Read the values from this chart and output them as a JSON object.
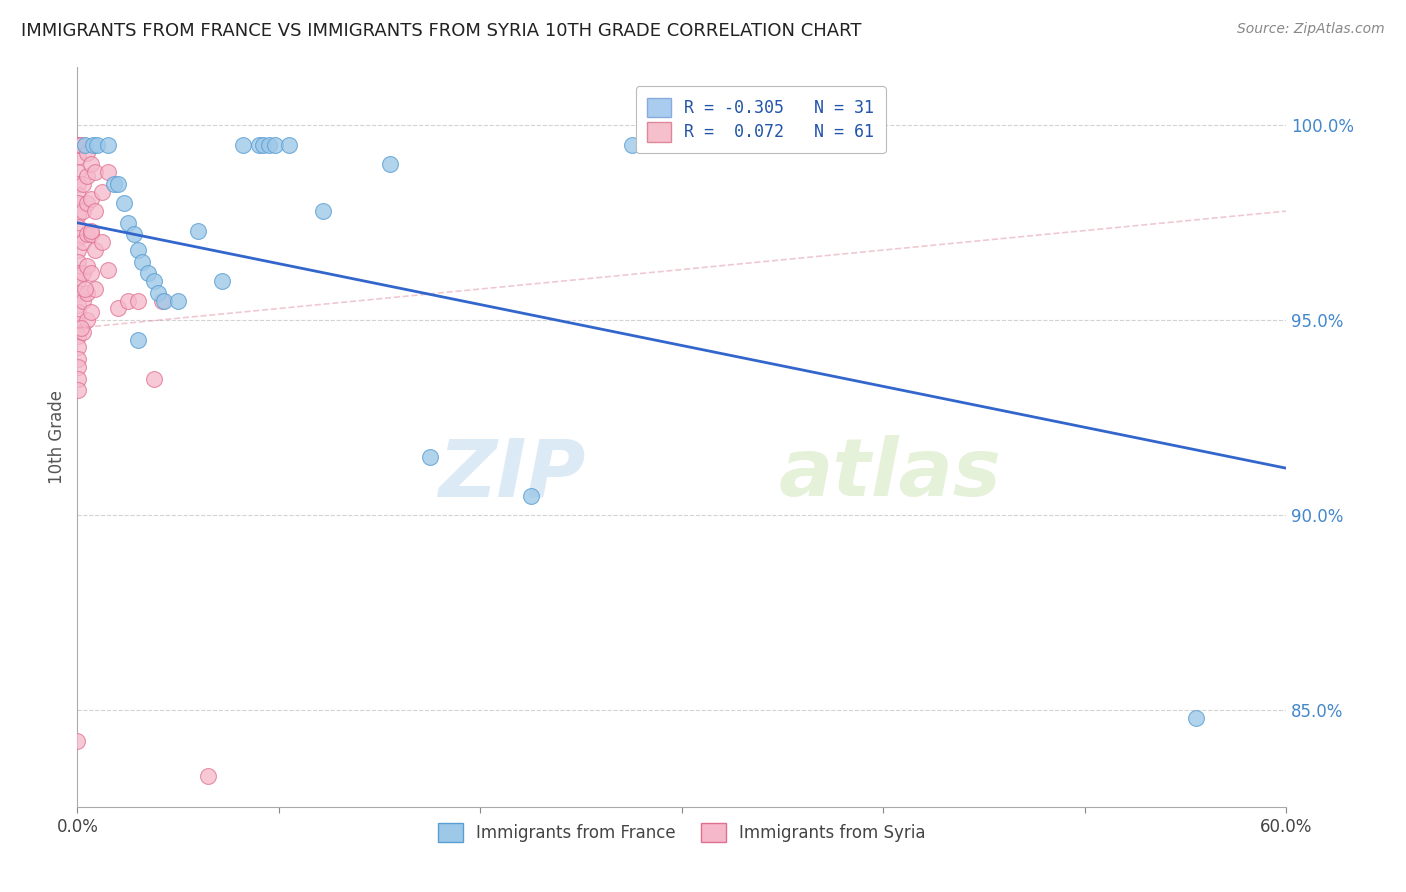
{
  "title": "IMMIGRANTS FROM FRANCE VS IMMIGRANTS FROM SYRIA 10TH GRADE CORRELATION CHART",
  "source": "Source: ZipAtlas.com",
  "ylabel": "10th Grade",
  "xlim": [
    0.0,
    60.0
  ],
  "ylim": [
    82.5,
    101.5
  ],
  "x_ticks": [
    0.0,
    10.0,
    20.0,
    30.0,
    40.0,
    50.0,
    60.0
  ],
  "y_ticks": [
    85.0,
    90.0,
    95.0,
    100.0
  ],
  "y_tick_labels": [
    "85.0%",
    "90.0%",
    "95.0%",
    "100.0%"
  ],
  "legend_r_entries": [
    {
      "label_r": "R = -0.305",
      "label_n": "N = 31",
      "color": "#aaccee"
    },
    {
      "label_r": "R =  0.072",
      "label_n": "N = 61",
      "color": "#f5c0cc"
    }
  ],
  "france_color": "#9ec8e8",
  "france_edge": "#5a9fd4",
  "syria_color": "#f5b8ca",
  "syria_edge": "#e07090",
  "france_trend_x": [
    0.0,
    60.0
  ],
  "france_trend_y": [
    97.5,
    91.2
  ],
  "syria_trend_x": [
    0.0,
    60.0
  ],
  "syria_trend_y": [
    94.8,
    97.8
  ],
  "france_trend_color": "#3366cc",
  "syria_trend_color": "#dd8899",
  "grid_color": "#c8c8c8",
  "background_color": "#ffffff",
  "france_scatter": [
    [
      0.4,
      99.5
    ],
    [
      0.8,
      99.5
    ],
    [
      1.0,
      99.5
    ],
    [
      1.5,
      99.5
    ],
    [
      1.8,
      98.5
    ],
    [
      2.0,
      98.5
    ],
    [
      2.3,
      98.0
    ],
    [
      2.5,
      97.5
    ],
    [
      2.8,
      97.2
    ],
    [
      3.0,
      96.8
    ],
    [
      3.2,
      96.5
    ],
    [
      3.5,
      96.2
    ],
    [
      3.8,
      96.0
    ],
    [
      4.0,
      95.7
    ],
    [
      4.3,
      95.5
    ],
    [
      5.0,
      95.5
    ],
    [
      6.0,
      97.3
    ],
    [
      7.2,
      96.0
    ],
    [
      8.2,
      99.5
    ],
    [
      9.0,
      99.5
    ],
    [
      9.2,
      99.5
    ],
    [
      9.5,
      99.5
    ],
    [
      9.8,
      99.5
    ],
    [
      10.5,
      99.5
    ],
    [
      12.2,
      97.8
    ],
    [
      15.5,
      99.0
    ],
    [
      17.5,
      91.5
    ],
    [
      22.5,
      90.5
    ],
    [
      27.5,
      99.5
    ],
    [
      55.5,
      84.8
    ],
    [
      3.0,
      94.5
    ]
  ],
  "syria_scatter": [
    [
      0.05,
      99.5
    ],
    [
      0.05,
      99.2
    ],
    [
      0.05,
      98.8
    ],
    [
      0.05,
      98.5
    ],
    [
      0.05,
      98.2
    ],
    [
      0.05,
      98.0
    ],
    [
      0.05,
      97.7
    ],
    [
      0.05,
      97.4
    ],
    [
      0.05,
      97.1
    ],
    [
      0.05,
      96.8
    ],
    [
      0.05,
      96.5
    ],
    [
      0.05,
      96.2
    ],
    [
      0.05,
      96.0
    ],
    [
      0.05,
      95.7
    ],
    [
      0.05,
      95.4
    ],
    [
      0.05,
      95.2
    ],
    [
      0.05,
      94.9
    ],
    [
      0.05,
      94.6
    ],
    [
      0.05,
      94.3
    ],
    [
      0.05,
      94.0
    ],
    [
      0.05,
      93.8
    ],
    [
      0.05,
      93.5
    ],
    [
      0.05,
      93.2
    ],
    [
      0.05,
      99.5
    ],
    [
      0.2,
      99.5
    ],
    [
      0.3,
      98.5
    ],
    [
      0.3,
      97.8
    ],
    [
      0.3,
      97.0
    ],
    [
      0.3,
      96.2
    ],
    [
      0.3,
      95.5
    ],
    [
      0.3,
      94.7
    ],
    [
      0.5,
      99.3
    ],
    [
      0.5,
      98.7
    ],
    [
      0.5,
      98.0
    ],
    [
      0.5,
      97.2
    ],
    [
      0.5,
      96.4
    ],
    [
      0.5,
      95.7
    ],
    [
      0.5,
      95.0
    ],
    [
      0.7,
      99.0
    ],
    [
      0.7,
      98.1
    ],
    [
      0.7,
      97.2
    ],
    [
      0.7,
      96.2
    ],
    [
      0.7,
      95.2
    ],
    [
      0.9,
      98.8
    ],
    [
      0.9,
      97.8
    ],
    [
      0.9,
      96.8
    ],
    [
      0.9,
      95.8
    ],
    [
      1.2,
      98.3
    ],
    [
      1.2,
      97.0
    ],
    [
      1.5,
      98.8
    ],
    [
      1.5,
      96.3
    ],
    [
      2.0,
      95.3
    ],
    [
      2.5,
      95.5
    ],
    [
      3.0,
      95.5
    ],
    [
      0.2,
      94.8
    ],
    [
      4.2,
      95.5
    ],
    [
      3.8,
      93.5
    ],
    [
      0.0,
      84.2
    ],
    [
      6.5,
      83.3
    ],
    [
      0.4,
      95.8
    ],
    [
      0.7,
      97.3
    ]
  ],
  "watermark_zip": "ZIP",
  "watermark_atlas": "atlas",
  "watermark_color_zip": "#c5dcf0",
  "watermark_color_atlas": "#d4e8c0"
}
